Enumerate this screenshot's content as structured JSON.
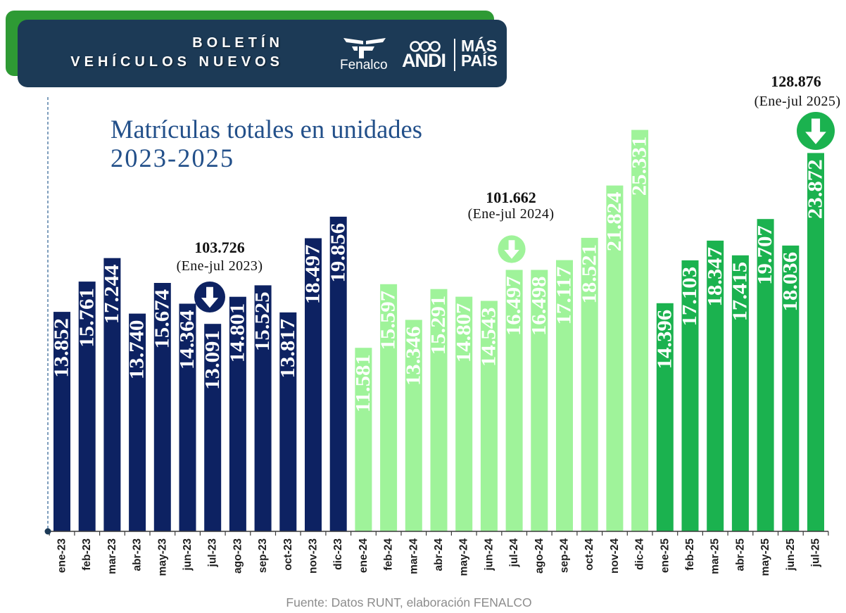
{
  "header": {
    "title_line1": "BOLETÍN",
    "title_line2": "VEHÍCULOS NUEVOS",
    "logo_fenalco": "Fenalco",
    "logo_andi": "ANDI",
    "logo_maspais_line1": "MÁS",
    "logo_maspais_line2": "PAÍS",
    "banner_color": "#1c3a56",
    "accent_color": "#2e9a34"
  },
  "chart_data": {
    "type": "bar",
    "title": "Matrículas totales en unidades",
    "subtitle": "2023-2025",
    "ylim": [
      0,
      27000
    ],
    "grid": false,
    "series": [
      {
        "color": "#0d2262",
        "label_color": "#ffffff",
        "categories": [
          "ene-23",
          "feb-23",
          "mar-23",
          "abr-23",
          "may-23",
          "jun-23",
          "jul-23",
          "ago-23",
          "sep-23",
          "oct-23",
          "nov-23",
          "dic-23"
        ],
        "values": [
          13852,
          15761,
          17244,
          13740,
          15674,
          14364,
          13091,
          14801,
          15525,
          13817,
          18497,
          19856
        ],
        "data_labels": [
          "13.852",
          "15.761",
          "17.244",
          "13.740",
          "15.674",
          "14.364",
          "13.091",
          "14.801",
          "15.525",
          "13.817",
          "18.497",
          "19.856"
        ]
      },
      {
        "color": "#9ff39a",
        "label_color": "#ffffff",
        "categories": [
          "ene-24",
          "feb-24",
          "mar-24",
          "abr-24",
          "may-24",
          "jun-24",
          "jul-24",
          "ago-24",
          "sep-24",
          "oct-24",
          "nov-24",
          "dic-24"
        ],
        "values": [
          11581,
          15597,
          13346,
          15291,
          14807,
          14543,
          16497,
          16498,
          17117,
          18521,
          21824,
          25331
        ],
        "data_labels": [
          "11.581",
          "15.597",
          "13.346",
          "15.291",
          "14.807",
          "14.543",
          "16.497",
          "16.498",
          "17.117",
          "18.521",
          "21.824",
          "25.331"
        ]
      },
      {
        "color": "#1bb24f",
        "label_color": "#ffffff",
        "categories": [
          "ene-25",
          "feb-25",
          "mar-25",
          "abr-25",
          "may-25",
          "jun-25",
          "jul-25"
        ],
        "values": [
          14396,
          17103,
          18347,
          17415,
          19707,
          18036,
          23872
        ],
        "data_labels": [
          "14.396",
          "17.103",
          "18.347",
          "17.415",
          "19.707",
          "18.036",
          "23.872"
        ]
      }
    ],
    "annotations": [
      {
        "value": "103.726",
        "period": "(Ene-jul 2023)",
        "arrow_color": "#0d2262"
      },
      {
        "value": "101.662",
        "period": "(Ene-jul 2024)",
        "arrow_color": "#9ff39a"
      },
      {
        "value": "128.876",
        "period": "(Ene-jul 2025)",
        "arrow_color": "#1bb24f"
      }
    ],
    "source": "Fuente: Datos RUNT, elaboración FENALCO"
  }
}
